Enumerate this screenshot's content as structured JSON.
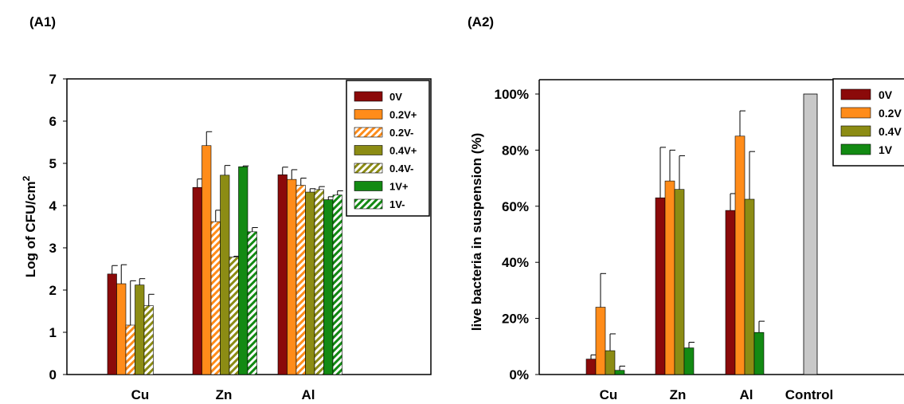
{
  "panels": {
    "a1_label": "(A1)",
    "a2_label": "(A2)"
  },
  "chart_data": [
    {
      "type": "bar",
      "panel": "(A1)",
      "title": "",
      "xlabel": "",
      "ylabel": "Log of CFU/cm",
      "ylabel_superscript": "2",
      "ylim": [
        0,
        7
      ],
      "yticks": [
        "0",
        "1",
        "2",
        "3",
        "4",
        "5",
        "6",
        "7"
      ],
      "grid": false,
      "legend_position": "top-right",
      "categories": [
        "Cu",
        "Zn",
        "Al"
      ],
      "series": [
        {
          "name": "0V",
          "color": "#8B0A0A",
          "hatch": false,
          "values": [
            2.38,
            4.43,
            4.73
          ],
          "errors": [
            0.2,
            0.2,
            0.18
          ]
        },
        {
          "name": "0.2V+",
          "color": "#FF8C1A",
          "hatch": false,
          "values": [
            2.15,
            5.42,
            4.62
          ],
          "errors": [
            0.45,
            0.33,
            0.23
          ]
        },
        {
          "name": "0.2V-",
          "color": "#FF8C1A",
          "hatch": true,
          "values": [
            1.17,
            3.62,
            4.48
          ],
          "errors": [
            1.05,
            0.27,
            0.17
          ]
        },
        {
          "name": "0.4V+",
          "color": "#8C8C14",
          "hatch": false,
          "values": [
            2.12,
            4.72,
            4.32
          ],
          "errors": [
            0.15,
            0.23,
            0.08
          ]
        },
        {
          "name": "0.4V-",
          "color": "#8C8C14",
          "hatch": true,
          "values": [
            1.63,
            2.78,
            4.38
          ],
          "errors": [
            0.27,
            0.02,
            0.07
          ]
        },
        {
          "name": "1V+",
          "color": "#138A13",
          "hatch": false,
          "values": [
            null,
            4.92,
            4.14
          ],
          "errors": [
            0,
            0.02,
            0.07
          ]
        },
        {
          "name": "1V-",
          "color": "#138A13",
          "hatch": true,
          "values": [
            null,
            3.38,
            4.25
          ],
          "errors": [
            0,
            0.1,
            0.1
          ]
        }
      ]
    },
    {
      "type": "bar",
      "panel": "(A2)",
      "title": "",
      "xlabel": "",
      "ylabel": "live bacteria in suspension (%)",
      "ylim": [
        0,
        100
      ],
      "yticks": [
        "0%",
        "20%",
        "40%",
        "60%",
        "80%",
        "100%"
      ],
      "grid": false,
      "legend_position": "top-right",
      "categories": [
        "Cu",
        "Zn",
        "Al",
        "Control"
      ],
      "series": [
        {
          "name": "0V",
          "color": "#8B0A0A",
          "values": [
            5.5,
            63,
            58.5,
            null
          ],
          "errors": [
            1.5,
            18,
            6
          ]
        },
        {
          "name": "0.2V",
          "color": "#FF8C1A",
          "values": [
            24,
            69,
            85,
            null
          ],
          "errors": [
            12,
            11,
            9
          ]
        },
        {
          "name": "0.4V",
          "color": "#8C8C14",
          "values": [
            8.5,
            66,
            62.5,
            null
          ],
          "errors": [
            6,
            12,
            17
          ]
        },
        {
          "name": "1V",
          "color": "#138A13",
          "values": [
            1.5,
            9.5,
            15,
            null
          ],
          "errors": [
            1.5,
            2,
            4
          ]
        }
      ],
      "control": {
        "name": "Control",
        "color": "#C8C8C8",
        "value": 100
      }
    }
  ]
}
